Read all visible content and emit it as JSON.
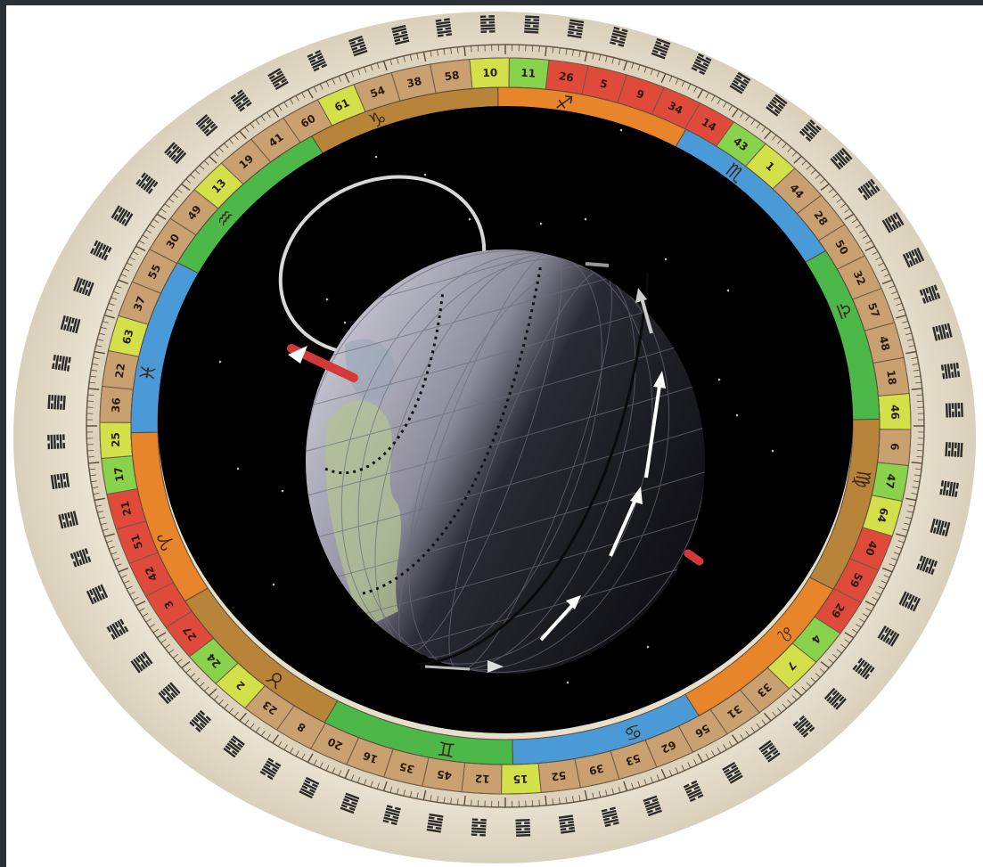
{
  "colors": {
    "background_dark": "#2b3035",
    "page_white": "#ffffff",
    "outer_ring": "#e8e2d2",
    "ticks_ring": "#d9cfb8",
    "space": "#000000",
    "globe_light": "#c8c8d4",
    "globe_dark": "#1b1b22",
    "land": "#b8c79a",
    "axis_red": "#d23a3a"
  },
  "gate_numbers": [
    {
      "value": "10",
      "color": "#d4e04a"
    },
    {
      "value": "11",
      "color": "#89d24b"
    },
    {
      "value": "26",
      "color": "#e04a3a"
    },
    {
      "value": "5",
      "color": "#e04a3a"
    },
    {
      "value": "9",
      "color": "#e04a3a"
    },
    {
      "value": "34",
      "color": "#e04a3a"
    },
    {
      "value": "14",
      "color": "#e04a3a"
    },
    {
      "value": "43",
      "color": "#89d24b"
    },
    {
      "value": "1",
      "color": "#d4e04a"
    },
    {
      "value": "44",
      "color": "#c9a070"
    },
    {
      "value": "28",
      "color": "#c9a070"
    },
    {
      "value": "50",
      "color": "#c9a070"
    },
    {
      "value": "32",
      "color": "#c9a070"
    },
    {
      "value": "57",
      "color": "#c9a070"
    },
    {
      "value": "48",
      "color": "#c9a070"
    },
    {
      "value": "18",
      "color": "#c9a070"
    },
    {
      "value": "46",
      "color": "#d4e04a"
    },
    {
      "value": "6",
      "color": "#c9a070"
    },
    {
      "value": "47",
      "color": "#89d24b"
    },
    {
      "value": "64",
      "color": "#d4e04a"
    },
    {
      "value": "40",
      "color": "#e04a3a"
    },
    {
      "value": "59",
      "color": "#e04a3a"
    },
    {
      "value": "29",
      "color": "#e04a3a"
    },
    {
      "value": "4",
      "color": "#89d24b"
    },
    {
      "value": "7",
      "color": "#d4e04a"
    },
    {
      "value": "33",
      "color": "#c9a070"
    },
    {
      "value": "31",
      "color": "#c9a070"
    },
    {
      "value": "56",
      "color": "#c9a070"
    },
    {
      "value": "62",
      "color": "#c9a070"
    },
    {
      "value": "53",
      "color": "#c9a070"
    },
    {
      "value": "39",
      "color": "#c9a070"
    },
    {
      "value": "52",
      "color": "#c9a070"
    },
    {
      "value": "15",
      "color": "#d4e04a"
    },
    {
      "value": "12",
      "color": "#c9a070"
    },
    {
      "value": "45",
      "color": "#c9a070"
    },
    {
      "value": "35",
      "color": "#c9a070"
    },
    {
      "value": "16",
      "color": "#c9a070"
    },
    {
      "value": "20",
      "color": "#c9a070"
    },
    {
      "value": "8",
      "color": "#c9a070"
    },
    {
      "value": "23",
      "color": "#c9a070"
    },
    {
      "value": "2",
      "color": "#d4e04a"
    },
    {
      "value": "24",
      "color": "#89d24b"
    },
    {
      "value": "27",
      "color": "#e04a3a"
    },
    {
      "value": "3",
      "color": "#e04a3a"
    },
    {
      "value": "42",
      "color": "#e04a3a"
    },
    {
      "value": "51",
      "color": "#e04a3a"
    },
    {
      "value": "21",
      "color": "#e04a3a"
    },
    {
      "value": "17",
      "color": "#89d24b"
    },
    {
      "value": "25",
      "color": "#d4e04a"
    },
    {
      "value": "36",
      "color": "#c9a070"
    },
    {
      "value": "22",
      "color": "#c9a070"
    },
    {
      "value": "63",
      "color": "#d4e04a"
    },
    {
      "value": "37",
      "color": "#c9a070"
    },
    {
      "value": "55",
      "color": "#c9a070"
    },
    {
      "value": "30",
      "color": "#c9a070"
    },
    {
      "value": "49",
      "color": "#c9a070"
    },
    {
      "value": "13",
      "color": "#d4e04a"
    },
    {
      "value": "19",
      "color": "#c9a070"
    },
    {
      "value": "41",
      "color": "#c9a070"
    },
    {
      "value": "60",
      "color": "#c9a070"
    },
    {
      "value": "61",
      "color": "#d4e04a"
    },
    {
      "value": "54",
      "color": "#c9a070"
    },
    {
      "value": "38",
      "color": "#c9a070"
    },
    {
      "value": "58",
      "color": "#c9a070"
    }
  ],
  "zodiac_signs": [
    {
      "symbol": "♐",
      "color": "#e8842a"
    },
    {
      "symbol": "♏",
      "color": "#4a9ad8"
    },
    {
      "symbol": "♎",
      "color": "#4cb84a"
    },
    {
      "symbol": "♍",
      "color": "#b8843a"
    },
    {
      "symbol": "♌",
      "color": "#e8842a"
    },
    {
      "symbol": "♋",
      "color": "#4a9ad8"
    },
    {
      "symbol": "♊",
      "color": "#4cb84a"
    },
    {
      "symbol": "♉",
      "color": "#b8843a"
    },
    {
      "symbol": "♈",
      "color": "#e8842a"
    },
    {
      "symbol": "♓",
      "color": "#4a9ad8"
    },
    {
      "symbol": "♒",
      "color": "#4cb84a"
    },
    {
      "symbol": "♑",
      "color": "#b8843a"
    }
  ],
  "hexagram_count": 64
}
